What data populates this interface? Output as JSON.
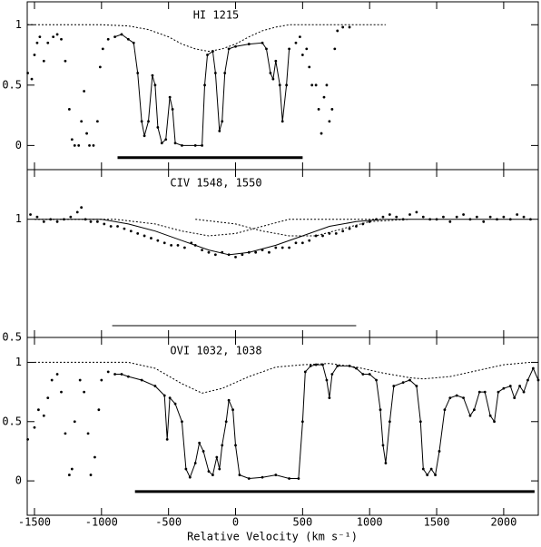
{
  "chart_data": [
    {
      "type": "line",
      "title": "HI 1215",
      "xlim": [
        -1554,
        2258
      ],
      "ylim": [
        -0.2,
        1.19
      ],
      "xticks": [
        -1500,
        -1000,
        -500,
        0,
        500,
        1000,
        1500,
        2000
      ],
      "yticks": [
        0,
        0.5,
        1
      ],
      "series": [
        {
          "style": "dotted",
          "color": "#000000",
          "x": [
            -1554,
            -1000,
            -800,
            -650,
            -500,
            -400,
            -300,
            -200,
            -100,
            0,
            100,
            200,
            300,
            400,
            600,
            1120
          ],
          "values": [
            1,
            1,
            0.99,
            0.96,
            0.9,
            0.84,
            0.8,
            0.78,
            0.8,
            0.84,
            0.9,
            0.95,
            0.98,
            1,
            1,
            1
          ]
        },
        {
          "style": "points",
          "color": "#000000",
          "x": [
            -1550,
            -1520,
            -1500,
            -1480,
            -1460,
            -1430,
            -1400,
            -1360,
            -1330,
            -1300,
            -1270,
            -1240,
            -1220,
            -1200,
            -1170,
            -1150,
            -1130,
            -1110,
            -1090,
            -1060,
            -1030,
            -1010,
            -990,
            -950,
            -900,
            -850,
            -800,
            -760,
            -730,
            -700,
            -680,
            -650,
            -620,
            -600,
            -580,
            -550,
            -520,
            -490,
            -470,
            -450,
            -400,
            -300,
            -250,
            -230,
            -210,
            -170,
            -150,
            -120,
            -100,
            -80,
            -50,
            0,
            100,
            200,
            230,
            260,
            280,
            300,
            330,
            350,
            380,
            400,
            450,
            480,
            500,
            530,
            550,
            570,
            600,
            620,
            640,
            660,
            680,
            700,
            720,
            740,
            760,
            800,
            850
          ],
          "values": [
            0.6,
            0.55,
            0.75,
            0.85,
            0.9,
            0.7,
            0.85,
            0.9,
            0.92,
            0.88,
            0.7,
            0.3,
            0.05,
            0,
            0,
            0.2,
            0.45,
            0.1,
            0,
            0,
            0.2,
            0.65,
            0.8,
            0.88,
            0.9,
            0.92,
            0.88,
            0.85,
            0.6,
            0.2,
            0.08,
            0.2,
            0.58,
            0.5,
            0.15,
            0.02,
            0.05,
            0.4,
            0.3,
            0.02,
            0,
            0,
            0,
            0.5,
            0.75,
            0.78,
            0.6,
            0.12,
            0.2,
            0.6,
            0.8,
            0.82,
            0.84,
            0.85,
            0.8,
            0.6,
            0.55,
            0.7,
            0.5,
            0.2,
            0.5,
            0.8,
            0.85,
            0.9,
            0.75,
            0.8,
            0.65,
            0.5,
            0.5,
            0.3,
            0.1,
            0.4,
            0.5,
            0.2,
            0.3,
            0.8,
            0.95,
            0.98,
            0.98
          ]
        },
        {
          "style": "line",
          "color": "#000000",
          "x": [
            -900,
            -850,
            -800,
            -760,
            -730,
            -700,
            -680,
            -650,
            -620,
            -600,
            -580,
            -550,
            -520,
            -490,
            -470,
            -450,
            -400,
            -300,
            -250,
            -230,
            -210,
            -170,
            -150,
            -120,
            -100,
            -80,
            -50,
            0,
            100,
            200,
            230,
            260,
            280,
            300,
            330,
            350,
            380,
            400
          ],
          "values": [
            0.9,
            0.92,
            0.88,
            0.85,
            0.6,
            0.2,
            0.08,
            0.2,
            0.58,
            0.5,
            0.15,
            0.02,
            0.05,
            0.4,
            0.3,
            0.02,
            0,
            0,
            0,
            0.5,
            0.75,
            0.78,
            0.6,
            0.12,
            0.2,
            0.6,
            0.8,
            0.82,
            0.84,
            0.85,
            0.8,
            0.6,
            0.55,
            0.7,
            0.5,
            0.2,
            0.5,
            0.8
          ]
        },
        {
          "style": "bar",
          "color": "#000000",
          "x": [
            -880,
            500
          ],
          "values": [
            -0.1,
            -0.1
          ]
        }
      ]
    },
    {
      "type": "line",
      "title": "CIV 1548, 1550",
      "xlim": [
        -1554,
        2258
      ],
      "ylim": [
        0.5,
        1.21
      ],
      "xticks": [
        -1500,
        -1000,
        -500,
        0,
        500,
        1000,
        1500,
        2000
      ],
      "yticks": [
        0.5,
        1
      ],
      "series": [
        {
          "style": "dotted",
          "color": "#000000",
          "x": [
            -1500,
            -900,
            -600,
            -400,
            -200,
            0,
            200,
            400,
            1100
          ],
          "values": [
            1,
            1,
            0.98,
            0.95,
            0.93,
            0.94,
            0.97,
            1,
            1
          ]
        },
        {
          "style": "dotted",
          "color": "#000000",
          "x": [
            -300,
            0,
            200,
            400,
            600,
            800,
            1000,
            1300
          ],
          "values": [
            1,
            0.98,
            0.95,
            0.93,
            0.93,
            0.96,
            0.99,
            1
          ]
        },
        {
          "style": "line",
          "color": "#000000",
          "x": [
            -1500,
            -1000,
            -800,
            -600,
            -400,
            -200,
            -50,
            100,
            300,
            500,
            700,
            900,
            1100,
            2200
          ],
          "values": [
            1,
            1,
            0.98,
            0.95,
            0.91,
            0.87,
            0.85,
            0.86,
            0.89,
            0.93,
            0.97,
            0.99,
            1,
            1
          ]
        },
        {
          "style": "points",
          "color": "#000000",
          "x": [
            -1530,
            -1480,
            -1430,
            -1380,
            -1330,
            -1280,
            -1230,
            -1180,
            -1150,
            -1120,
            -1080,
            -1030,
            -980,
            -930,
            -880,
            -830,
            -780,
            -730,
            -680,
            -630,
            -580,
            -530,
            -480,
            -430,
            -380,
            -330,
            -300,
            -250,
            -200,
            -150,
            -100,
            -50,
            0,
            50,
            100,
            150,
            200,
            250,
            300,
            350,
            400,
            450,
            500,
            550,
            600,
            650,
            700,
            750,
            800,
            850,
            900,
            950,
            1000,
            1050,
            1100,
            1150,
            1200,
            1250,
            1300,
            1350,
            1400,
            1450,
            1500,
            1550,
            1600,
            1650,
            1700,
            1750,
            1800,
            1850,
            1900,
            1950,
            2000,
            2050,
            2100,
            2150,
            2200
          ],
          "values": [
            1.02,
            1.01,
            0.99,
            1,
            0.99,
            1,
            1.01,
            1.03,
            1.05,
            1,
            0.99,
            0.99,
            0.98,
            0.97,
            0.97,
            0.96,
            0.95,
            0.94,
            0.93,
            0.92,
            0.91,
            0.9,
            0.89,
            0.89,
            0.88,
            0.9,
            0.89,
            0.87,
            0.86,
            0.85,
            0.86,
            0.85,
            0.84,
            0.85,
            0.86,
            0.86,
            0.87,
            0.86,
            0.88,
            0.88,
            0.88,
            0.9,
            0.9,
            0.91,
            0.93,
            0.93,
            0.94,
            0.94,
            0.95,
            0.96,
            0.97,
            0.98,
            0.99,
            1,
            1.01,
            1.02,
            1.01,
            1,
            1.02,
            1.03,
            1.01,
            1,
            1,
            1.01,
            0.99,
            1.01,
            1.02,
            1,
            1.01,
            0.99,
            1.01,
            1,
            1.01,
            1,
            1.02,
            1.01,
            1
          ]
        },
        {
          "style": "thin",
          "color": "#000000",
          "x": [
            -920,
            900
          ],
          "values": [
            0.55,
            0.55
          ]
        }
      ]
    },
    {
      "type": "line",
      "title": "OVI 1032, 1038",
      "xlabel": "Relative Velocity (km s⁻¹)",
      "xlim": [
        -1554,
        2258
      ],
      "ylim": [
        -0.29,
        1.21
      ],
      "xticks": [
        -1500,
        -1000,
        -500,
        0,
        500,
        1000,
        1500,
        2000
      ],
      "yticks": [
        0,
        0.5,
        1
      ],
      "series": [
        {
          "style": "dotted",
          "color": "#000000",
          "x": [
            -1500,
            -800,
            -600,
            -400,
            -250,
            -100,
            100,
            300,
            500,
            700,
            900,
            1100,
            1300,
            1400,
            1600,
            1800,
            2000,
            2200
          ],
          "values": [
            1,
            1,
            0.95,
            0.82,
            0.74,
            0.78,
            0.88,
            0.96,
            0.98,
            0.99,
            0.96,
            0.91,
            0.87,
            0.86,
            0.88,
            0.93,
            0.98,
            1
          ]
        },
        {
          "style": "points",
          "color": "#000000",
          "x": [
            -1550,
            -1500,
            -1470,
            -1430,
            -1400,
            -1370,
            -1330,
            -1300,
            -1270,
            -1240,
            -1220,
            -1200,
            -1160,
            -1130,
            -1100,
            -1080,
            -1050,
            -1020,
            -1000,
            -950,
            -900,
            -850,
            -800,
            -700,
            -600,
            -530,
            -510,
            -490,
            -450,
            -400,
            -370,
            -340,
            -300,
            -270,
            -240,
            -200,
            -170,
            -140,
            -120,
            -100,
            -70,
            -50,
            -20,
            0,
            30,
            100,
            200,
            300,
            400,
            470,
            500,
            520,
            560,
            600,
            650,
            680,
            700,
            720,
            760,
            850,
            900,
            950,
            1000,
            1050,
            1080,
            1100,
            1120,
            1150,
            1180,
            1250,
            1300,
            1350,
            1380,
            1400,
            1430,
            1460,
            1490,
            1520,
            1560,
            1600,
            1650,
            1700,
            1750,
            1780,
            1820,
            1860,
            1900,
            1930,
            1960,
            2000,
            2050,
            2080,
            2120,
            2150,
            2180,
            2220,
            2258
          ],
          "values": [
            0.35,
            0.45,
            0.6,
            0.55,
            0.7,
            0.85,
            0.9,
            0.75,
            0.4,
            0.05,
            0.1,
            0.5,
            0.85,
            0.75,
            0.4,
            0.05,
            0.2,
            0.6,
            0.85,
            0.92,
            0.9,
            0.9,
            0.88,
            0.85,
            0.8,
            0.72,
            0.35,
            0.7,
            0.65,
            0.5,
            0.1,
            0.03,
            0.15,
            0.32,
            0.25,
            0.08,
            0.05,
            0.2,
            0.1,
            0.3,
            0.5,
            0.68,
            0.6,
            0.3,
            0.05,
            0.02,
            0.03,
            0.05,
            0.02,
            0.02,
            0.5,
            0.92,
            0.97,
            0.98,
            0.98,
            0.85,
            0.7,
            0.9,
            0.97,
            0.97,
            0.95,
            0.9,
            0.9,
            0.85,
            0.6,
            0.3,
            0.15,
            0.5,
            0.8,
            0.83,
            0.85,
            0.8,
            0.5,
            0.1,
            0.05,
            0.1,
            0.05,
            0.25,
            0.6,
            0.7,
            0.72,
            0.7,
            0.55,
            0.6,
            0.75,
            0.75,
            0.55,
            0.5,
            0.75,
            0.78,
            0.8,
            0.7,
            0.8,
            0.75,
            0.85,
            0.95,
            0.85
          ]
        },
        {
          "style": "line",
          "color": "#000000",
          "x": [
            -900,
            -850,
            -800,
            -700,
            -600,
            -530,
            -510,
            -490,
            -450,
            -400,
            -370,
            -340,
            -300,
            -270,
            -240,
            -200,
            -170,
            -140,
            -120,
            -100,
            -70,
            -50,
            -20,
            0,
            30,
            100,
            200,
            300,
            400,
            470,
            500,
            520,
            560,
            600,
            650,
            680,
            700,
            720,
            760,
            850,
            900,
            950,
            1000,
            1050,
            1080,
            1100,
            1120,
            1150,
            1180,
            1250,
            1300,
            1350,
            1380,
            1400,
            1430,
            1460,
            1490,
            1520,
            1560,
            1600,
            1650,
            1700,
            1750,
            1780,
            1820,
            1860,
            1900,
            1930,
            1960,
            2000,
            2050,
            2080,
            2120,
            2150,
            2180,
            2220,
            2258
          ],
          "values": [
            0.9,
            0.9,
            0.88,
            0.85,
            0.8,
            0.72,
            0.35,
            0.7,
            0.65,
            0.5,
            0.1,
            0.03,
            0.15,
            0.32,
            0.25,
            0.08,
            0.05,
            0.2,
            0.1,
            0.3,
            0.5,
            0.68,
            0.6,
            0.3,
            0.05,
            0.02,
            0.03,
            0.05,
            0.02,
            0.02,
            0.5,
            0.92,
            0.97,
            0.98,
            0.98,
            0.85,
            0.7,
            0.9,
            0.97,
            0.97,
            0.95,
            0.9,
            0.9,
            0.85,
            0.6,
            0.3,
            0.15,
            0.5,
            0.8,
            0.83,
            0.85,
            0.8,
            0.5,
            0.1,
            0.05,
            0.1,
            0.05,
            0.25,
            0.6,
            0.7,
            0.72,
            0.7,
            0.55,
            0.6,
            0.75,
            0.75,
            0.55,
            0.5,
            0.75,
            0.78,
            0.8,
            0.7,
            0.8,
            0.75,
            0.85,
            0.95,
            0.85
          ]
        },
        {
          "style": "bar",
          "color": "#000000",
          "x": [
            -750,
            2230
          ],
          "values": [
            -0.09,
            -0.09
          ]
        }
      ]
    }
  ]
}
